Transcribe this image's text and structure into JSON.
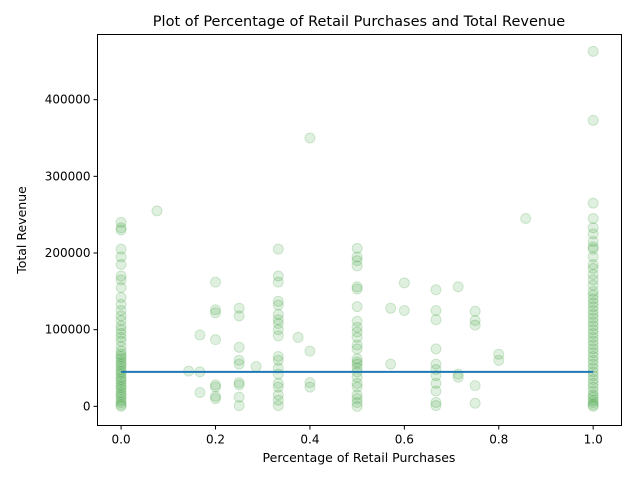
{
  "chart_data": {
    "type": "scatter",
    "title": "Plot of Percentage of Retail Purchases and Total Revenue",
    "xlabel": "Percentage of Retail Purchases",
    "ylabel": "Total Revenue",
    "xlim": [
      -0.05,
      1.06
    ],
    "ylim": [
      -25000,
      485000
    ],
    "x_ticks": [
      0.0,
      0.2,
      0.4,
      0.6,
      0.8,
      1.0
    ],
    "x_tick_labels": [
      "0.0",
      "0.2",
      "0.4",
      "0.6",
      "0.8",
      "1.0"
    ],
    "y_ticks": [
      0,
      100000,
      200000,
      300000,
      400000
    ],
    "y_tick_labels": [
      "0",
      "100000",
      "200000",
      "300000",
      "400000"
    ],
    "grid": false,
    "colors": {
      "points": "#008000",
      "line": "#1f77b4"
    },
    "points_alpha": 0.12,
    "series": [
      {
        "kind": "scatter",
        "points": [
          [
            0.0,
            0
          ],
          [
            0.0,
            2000
          ],
          [
            0.0,
            5000
          ],
          [
            0.0,
            8000
          ],
          [
            0.0,
            12000
          ],
          [
            0.0,
            15000
          ],
          [
            0.0,
            18000
          ],
          [
            0.0,
            22000
          ],
          [
            0.0,
            25000
          ],
          [
            0.0,
            28000
          ],
          [
            0.0,
            32000
          ],
          [
            0.0,
            35000
          ],
          [
            0.0,
            38000
          ],
          [
            0.0,
            42000
          ],
          [
            0.0,
            45000
          ],
          [
            0.0,
            48000
          ],
          [
            0.0,
            52000
          ],
          [
            0.0,
            55000
          ],
          [
            0.0,
            58000
          ],
          [
            0.0,
            62000
          ],
          [
            0.0,
            65000
          ],
          [
            0.0,
            68000
          ],
          [
            0.0,
            72000
          ],
          [
            0.0,
            78000
          ],
          [
            0.0,
            85000
          ],
          [
            0.0,
            90000
          ],
          [
            0.0,
            95000
          ],
          [
            0.0,
            100000
          ],
          [
            0.0,
            105000
          ],
          [
            0.0,
            112000
          ],
          [
            0.0,
            118000
          ],
          [
            0.0,
            125000
          ],
          [
            0.0,
            133000
          ],
          [
            0.0,
            142000
          ],
          [
            0.0,
            155000
          ],
          [
            0.0,
            165000
          ],
          [
            0.0,
            170000
          ],
          [
            0.0,
            185000
          ],
          [
            0.0,
            195000
          ],
          [
            0.0,
            205000
          ],
          [
            0.0,
            230000
          ],
          [
            0.0,
            233000
          ],
          [
            0.0,
            240000
          ],
          [
            0.076,
            255000
          ],
          [
            0.143,
            46000
          ],
          [
            0.167,
            45000
          ],
          [
            0.167,
            93000
          ],
          [
            0.167,
            18000
          ],
          [
            0.2,
            10000
          ],
          [
            0.2,
            13000
          ],
          [
            0.2,
            25000
          ],
          [
            0.2,
            28000
          ],
          [
            0.2,
            87000
          ],
          [
            0.2,
            122000
          ],
          [
            0.2,
            126000
          ],
          [
            0.2,
            162000
          ],
          [
            0.25,
            1000
          ],
          [
            0.25,
            12000
          ],
          [
            0.25,
            28000
          ],
          [
            0.25,
            31000
          ],
          [
            0.25,
            55000
          ],
          [
            0.25,
            60000
          ],
          [
            0.25,
            77000
          ],
          [
            0.25,
            118000
          ],
          [
            0.25,
            128000
          ],
          [
            0.286,
            52000
          ],
          [
            0.333,
            1000
          ],
          [
            0.333,
            8000
          ],
          [
            0.333,
            15000
          ],
          [
            0.333,
            25000
          ],
          [
            0.333,
            30000
          ],
          [
            0.333,
            42000
          ],
          [
            0.333,
            50000
          ],
          [
            0.333,
            60000
          ],
          [
            0.333,
            65000
          ],
          [
            0.333,
            92000
          ],
          [
            0.333,
            100000
          ],
          [
            0.333,
            108000
          ],
          [
            0.333,
            113000
          ],
          [
            0.333,
            120000
          ],
          [
            0.333,
            132000
          ],
          [
            0.333,
            137000
          ],
          [
            0.333,
            162000
          ],
          [
            0.333,
            170000
          ],
          [
            0.333,
            205000
          ],
          [
            0.375,
            90000
          ],
          [
            0.4,
            25000
          ],
          [
            0.4,
            31000
          ],
          [
            0.4,
            72000
          ],
          [
            0.4,
            350000
          ],
          [
            0.5,
            0
          ],
          [
            0.5,
            5000
          ],
          [
            0.5,
            10000
          ],
          [
            0.5,
            15000
          ],
          [
            0.5,
            25000
          ],
          [
            0.5,
            30000
          ],
          [
            0.5,
            38000
          ],
          [
            0.5,
            45000
          ],
          [
            0.5,
            50000
          ],
          [
            0.5,
            55000
          ],
          [
            0.5,
            58000
          ],
          [
            0.5,
            62000
          ],
          [
            0.5,
            75000
          ],
          [
            0.5,
            80000
          ],
          [
            0.5,
            90000
          ],
          [
            0.5,
            97000
          ],
          [
            0.5,
            103000
          ],
          [
            0.5,
            111000
          ],
          [
            0.5,
            130000
          ],
          [
            0.5,
            153000
          ],
          [
            0.5,
            156000
          ],
          [
            0.5,
            183000
          ],
          [
            0.5,
            190000
          ],
          [
            0.5,
            195000
          ],
          [
            0.5,
            206000
          ],
          [
            0.571,
            55000
          ],
          [
            0.571,
            128000
          ],
          [
            0.6,
            125000
          ],
          [
            0.6,
            161000
          ],
          [
            0.667,
            1000
          ],
          [
            0.667,
            5000
          ],
          [
            0.667,
            20000
          ],
          [
            0.667,
            30000
          ],
          [
            0.667,
            40000
          ],
          [
            0.667,
            48000
          ],
          [
            0.667,
            55000
          ],
          [
            0.667,
            75000
          ],
          [
            0.667,
            113000
          ],
          [
            0.667,
            125000
          ],
          [
            0.667,
            152000
          ],
          [
            0.714,
            38000
          ],
          [
            0.714,
            42000
          ],
          [
            0.714,
            156000
          ],
          [
            0.75,
            4000
          ],
          [
            0.75,
            27000
          ],
          [
            0.75,
            106000
          ],
          [
            0.75,
            112000
          ],
          [
            0.75,
            124000
          ],
          [
            0.8,
            60000
          ],
          [
            0.8,
            68000
          ],
          [
            0.857,
            245000
          ],
          [
            1.0,
            0
          ],
          [
            1.0,
            2000
          ],
          [
            1.0,
            5000
          ],
          [
            1.0,
            8000
          ],
          [
            1.0,
            12000
          ],
          [
            1.0,
            15000
          ],
          [
            1.0,
            20000
          ],
          [
            1.0,
            25000
          ],
          [
            1.0,
            30000
          ],
          [
            1.0,
            35000
          ],
          [
            1.0,
            40000
          ],
          [
            1.0,
            45000
          ],
          [
            1.0,
            50000
          ],
          [
            1.0,
            55000
          ],
          [
            1.0,
            60000
          ],
          [
            1.0,
            65000
          ],
          [
            1.0,
            70000
          ],
          [
            1.0,
            75000
          ],
          [
            1.0,
            80000
          ],
          [
            1.0,
            85000
          ],
          [
            1.0,
            90000
          ],
          [
            1.0,
            95000
          ],
          [
            1.0,
            100000
          ],
          [
            1.0,
            105000
          ],
          [
            1.0,
            110000
          ],
          [
            1.0,
            115000
          ],
          [
            1.0,
            120000
          ],
          [
            1.0,
            125000
          ],
          [
            1.0,
            130000
          ],
          [
            1.0,
            135000
          ],
          [
            1.0,
            140000
          ],
          [
            1.0,
            145000
          ],
          [
            1.0,
            150000
          ],
          [
            1.0,
            158000
          ],
          [
            1.0,
            165000
          ],
          [
            1.0,
            172000
          ],
          [
            1.0,
            180000
          ],
          [
            1.0,
            185000
          ],
          [
            1.0,
            195000
          ],
          [
            1.0,
            205000
          ],
          [
            1.0,
            208000
          ],
          [
            1.0,
            215000
          ],
          [
            1.0,
            225000
          ],
          [
            1.0,
            233000
          ],
          [
            1.0,
            245000
          ],
          [
            1.0,
            265000
          ],
          [
            1.0,
            373000
          ],
          [
            1.0,
            463000
          ]
        ]
      },
      {
        "kind": "line",
        "points": [
          [
            0.0,
            45000
          ],
          [
            1.0,
            45000
          ]
        ]
      }
    ]
  }
}
